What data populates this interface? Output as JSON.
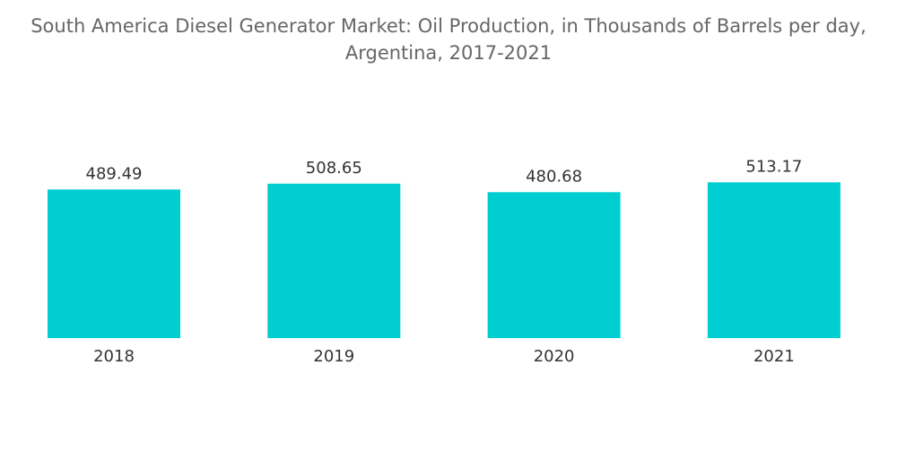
{
  "chart_data": {
    "type": "bar",
    "title_line1": "South America Diesel Generator Market: Oil Production, in Thousands of Barrels per day,",
    "title_line2": "Argentina, 2017-2021",
    "categories": [
      "2018",
      "2019",
      "2020",
      "2021"
    ],
    "values": [
      489.49,
      508.65,
      480.68,
      513.17
    ],
    "value_labels": [
      "489.49",
      "508.65",
      "480.68",
      "513.17"
    ],
    "bar_color": "#00CED1",
    "grid": false,
    "legend": "none"
  }
}
